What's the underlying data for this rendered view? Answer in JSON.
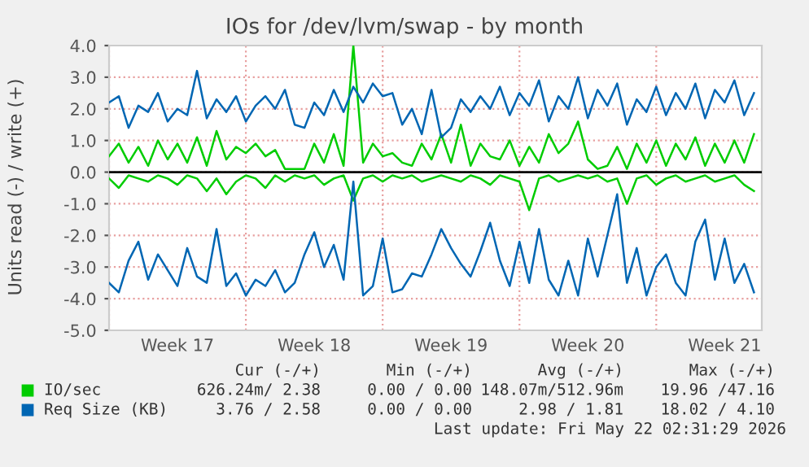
{
  "chart_data": {
    "type": "line",
    "title": "IOs for /dev/lvm/swap - by month",
    "ylabel": "Units read (-) / write (+)",
    "categories": [
      null,
      null,
      null,
      null,
      null,
      null,
      null,
      "Week 17",
      null,
      null,
      null,
      null,
      null,
      null,
      null,
      null,
      null,
      null,
      null,
      null,
      null,
      "Week 18",
      null,
      null,
      null,
      null,
      null,
      null,
      null,
      null,
      null,
      null,
      null,
      null,
      null,
      "Week 19",
      null,
      null,
      null,
      null,
      null,
      null,
      null,
      null,
      null,
      null,
      null,
      null,
      null,
      "Week 20",
      null,
      null,
      null,
      null,
      null,
      null,
      null,
      null,
      null,
      null,
      null,
      null,
      null,
      "Week 21",
      null,
      null,
      null
    ],
    "series": [
      {
        "name": "IO/sec",
        "color": "#00cc00",
        "values": [
          0.5,
          0.9,
          0.3,
          0.8,
          0.2,
          1.0,
          0.4,
          0.9,
          0.3,
          1.1,
          0.2,
          1.3,
          0.4,
          0.8,
          0.6,
          0.9,
          0.5,
          0.7,
          0.1,
          0.1,
          0.1,
          0.9,
          0.3,
          1.2,
          0.2,
          4.0,
          0.3,
          0.9,
          0.5,
          0.6,
          0.3,
          0.2,
          0.9,
          0.4,
          1.2,
          0.3,
          1.5,
          0.2,
          0.9,
          0.5,
          0.4,
          1.0,
          0.2,
          0.8,
          0.3,
          1.2,
          0.6,
          0.9,
          1.6,
          0.4,
          0.1,
          0.2,
          0.8,
          0.1,
          0.9,
          0.3,
          1.0,
          0.2,
          0.9,
          0.4,
          1.1,
          0.2,
          0.9,
          0.3,
          1.0,
          0.3,
          1.2
        ]
      },
      {
        "color": "#00cc00",
        "values": [
          -0.2,
          -0.5,
          -0.1,
          -0.2,
          -0.3,
          -0.1,
          -0.2,
          -0.4,
          -0.1,
          -0.2,
          -0.6,
          -0.2,
          -0.7,
          -0.3,
          -0.1,
          -0.2,
          -0.5,
          -0.1,
          -0.3,
          -0.1,
          -0.2,
          -0.1,
          -0.4,
          -0.2,
          -0.1,
          -0.9,
          -0.2,
          -0.1,
          -0.3,
          -0.1,
          -0.2,
          -0.1,
          -0.3,
          -0.2,
          -0.1,
          -0.2,
          -0.3,
          -0.1,
          -0.2,
          -0.4,
          -0.1,
          -0.2,
          -0.3,
          -1.2,
          -0.2,
          -0.1,
          -0.3,
          -0.2,
          -0.1,
          -0.2,
          -0.1,
          -0.3,
          -0.2,
          -1.0,
          -0.2,
          -0.1,
          -0.4,
          -0.2,
          -0.1,
          -0.3,
          -0.2,
          -0.1,
          -0.3,
          -0.2,
          -0.1,
          -0.4,
          -0.6
        ]
      },
      {
        "name": "Req Size (KB)",
        "color": "#0066b3",
        "values": [
          2.2,
          2.4,
          1.4,
          2.1,
          1.9,
          2.5,
          1.6,
          2.0,
          1.8,
          3.2,
          1.7,
          2.3,
          1.9,
          2.4,
          1.6,
          2.1,
          2.4,
          2.0,
          2.6,
          1.5,
          1.4,
          2.2,
          1.8,
          2.6,
          1.9,
          2.7,
          2.2,
          2.8,
          2.4,
          2.5,
          1.5,
          2.0,
          1.2,
          2.6,
          1.1,
          1.4,
          2.3,
          1.9,
          2.4,
          2.0,
          2.7,
          1.8,
          2.5,
          2.1,
          2.9,
          1.6,
          2.4,
          2.0,
          3.0,
          1.7,
          2.6,
          2.1,
          2.8,
          1.5,
          2.3,
          1.9,
          2.7,
          1.8,
          2.5,
          2.0,
          2.8,
          1.7,
          2.6,
          2.2,
          2.9,
          1.8,
          2.5
        ]
      },
      {
        "color": "#0066b3",
        "values": [
          -3.5,
          -3.8,
          -2.8,
          -2.2,
          -3.4,
          -2.6,
          -3.1,
          -3.6,
          -2.4,
          -3.3,
          -3.5,
          -1.8,
          -3.6,
          -3.2,
          -3.9,
          -3.4,
          -3.6,
          -3.1,
          -3.8,
          -3.5,
          -2.6,
          -1.9,
          -3.0,
          -2.3,
          -3.4,
          -0.3,
          -3.9,
          -3.6,
          -2.1,
          -3.8,
          -3.7,
          -3.2,
          -3.3,
          -2.6,
          -1.8,
          -2.4,
          -2.9,
          -3.3,
          -2.5,
          -1.6,
          -2.8,
          -3.6,
          -2.2,
          -3.5,
          -1.8,
          -3.4,
          -3.9,
          -2.8,
          -3.9,
          -2.1,
          -3.3,
          -2.0,
          -0.7,
          -3.5,
          -2.4,
          -3.9,
          -3.0,
          -2.6,
          -3.5,
          -3.9,
          -2.2,
          -1.5,
          -3.4,
          -2.1,
          -3.5,
          -2.9,
          -3.8
        ]
      }
    ],
    "ylim": [
      -5,
      4
    ],
    "yticks": [
      {
        "value": -5,
        "label": "-5.0"
      },
      {
        "value": -4,
        "label": "-4.0"
      },
      {
        "value": -3,
        "label": "-3.0"
      },
      {
        "value": -2,
        "label": "-2.0"
      },
      {
        "value": -1,
        "label": "-1.0"
      },
      {
        "value": 0,
        "label": "0.0"
      },
      {
        "value": 1,
        "label": "1.0"
      },
      {
        "value": 2,
        "label": "2.0"
      },
      {
        "value": 3,
        "label": "3.0"
      },
      {
        "value": 4,
        "label": "4.0"
      }
    ],
    "ref_lines": [
      {
        "axis": "y",
        "value": 0,
        "color": "#000000"
      }
    ],
    "grid": true,
    "legend": "bottom",
    "annotations": [
      "Cur (-/+)",
      "Min (-/+)",
      "Avg (-/+)",
      "Max (-/+)",
      "626.24m/ 2.38",
      "0.00 / 0.00",
      "148.07m/512.96m",
      "19.96 /47.16",
      "3.76 / 2.58",
      "0.00 / 0.00",
      "2.98 / 1.81",
      "18.02 / 4.10",
      "Last update: Fri May 22 02:31:29 2026"
    ]
  }
}
